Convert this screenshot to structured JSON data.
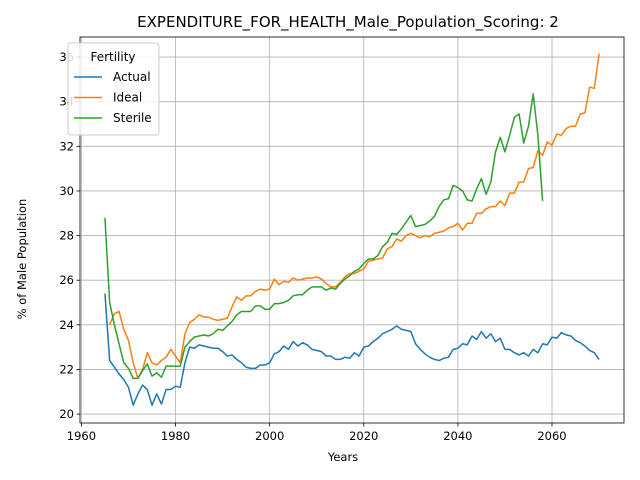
{
  "chart_data": {
    "type": "line",
    "title": "EXPENDITURE_FOR_HEALTH_Male_Population_Scoring: 2",
    "xlabel": "Years",
    "ylabel": "% of Male Population",
    "xlim": [
      1959.7,
      2075.3
    ],
    "ylim": [
      19.6,
      36.9
    ],
    "x_ticks": [
      1960,
      1980,
      2000,
      2020,
      2040,
      2060
    ],
    "y_ticks": [
      20,
      22,
      24,
      26,
      28,
      30,
      32,
      34,
      36
    ],
    "grid": true,
    "legend": {
      "title": "Fertility",
      "placement": "upper-left"
    },
    "series": [
      {
        "name": "Actual",
        "color": "#1f77b4",
        "points": [
          [
            1965,
            25.4
          ],
          [
            1966,
            22.4
          ],
          [
            1967,
            22.1
          ],
          [
            1968,
            21.8
          ],
          [
            1969,
            21.55
          ],
          [
            1970,
            21.2
          ],
          [
            1971,
            20.4
          ],
          [
            1972,
            20.9
          ],
          [
            1973,
            21.3
          ],
          [
            1974,
            21.1
          ],
          [
            1975,
            20.4
          ],
          [
            1976,
            20.9
          ],
          [
            1977,
            20.45
          ],
          [
            1978,
            21.1
          ],
          [
            1979,
            21.1
          ],
          [
            1980,
            21.25
          ],
          [
            1981,
            21.2
          ],
          [
            1982,
            22.3
          ],
          [
            1983,
            23.0
          ],
          [
            1984,
            22.95
          ],
          [
            1985,
            23.1
          ],
          [
            1986,
            23.05
          ],
          [
            1987,
            23.0
          ],
          [
            1988,
            22.95
          ],
          [
            1989,
            22.95
          ],
          [
            1990,
            22.8
          ],
          [
            1991,
            22.6
          ],
          [
            1992,
            22.65
          ],
          [
            1993,
            22.45
          ],
          [
            1994,
            22.3
          ],
          [
            1995,
            22.1
          ],
          [
            1996,
            22.05
          ],
          [
            1997,
            22.05
          ],
          [
            1998,
            22.2
          ],
          [
            1999,
            22.2
          ],
          [
            2000,
            22.3
          ],
          [
            2001,
            22.7
          ],
          [
            2002,
            22.8
          ],
          [
            2003,
            23.05
          ],
          [
            2004,
            22.9
          ],
          [
            2005,
            23.25
          ],
          [
            2006,
            23.05
          ],
          [
            2007,
            23.2
          ],
          [
            2008,
            23.1
          ],
          [
            2009,
            22.9
          ],
          [
            2010,
            22.85
          ],
          [
            2011,
            22.8
          ],
          [
            2012,
            22.6
          ],
          [
            2013,
            22.6
          ],
          [
            2014,
            22.45
          ],
          [
            2015,
            22.45
          ],
          [
            2016,
            22.55
          ],
          [
            2017,
            22.5
          ],
          [
            2018,
            22.75
          ],
          [
            2019,
            22.6
          ],
          [
            2020,
            23.0
          ],
          [
            2021,
            23.05
          ],
          [
            2022,
            23.25
          ],
          [
            2023,
            23.4
          ],
          [
            2024,
            23.6
          ],
          [
            2025,
            23.7
          ],
          [
            2026,
            23.8
          ],
          [
            2027,
            23.95
          ],
          [
            2028,
            23.8
          ],
          [
            2029,
            23.75
          ],
          [
            2030,
            23.7
          ],
          [
            2031,
            23.15
          ],
          [
            2032,
            22.9
          ],
          [
            2033,
            22.7
          ],
          [
            2034,
            22.55
          ],
          [
            2035,
            22.45
          ],
          [
            2036,
            22.4
          ],
          [
            2037,
            22.5
          ],
          [
            2038,
            22.55
          ],
          [
            2039,
            22.9
          ],
          [
            2040,
            22.95
          ],
          [
            2041,
            23.15
          ],
          [
            2042,
            23.1
          ],
          [
            2043,
            23.5
          ],
          [
            2044,
            23.35
          ],
          [
            2045,
            23.7
          ],
          [
            2046,
            23.4
          ],
          [
            2047,
            23.6
          ],
          [
            2048,
            23.25
          ],
          [
            2049,
            23.4
          ],
          [
            2050,
            22.9
          ],
          [
            2051,
            22.9
          ],
          [
            2052,
            22.75
          ],
          [
            2053,
            22.65
          ],
          [
            2054,
            22.75
          ],
          [
            2055,
            22.6
          ],
          [
            2056,
            22.9
          ],
          [
            2057,
            22.75
          ],
          [
            2058,
            23.15
          ],
          [
            2059,
            23.1
          ],
          [
            2060,
            23.45
          ],
          [
            2061,
            23.4
          ],
          [
            2062,
            23.65
          ],
          [
            2063,
            23.55
          ],
          [
            2064,
            23.5
          ],
          [
            2065,
            23.3
          ],
          [
            2066,
            23.2
          ],
          [
            2067,
            23.05
          ],
          [
            2068,
            22.85
          ],
          [
            2069,
            22.75
          ],
          [
            2070,
            22.45
          ]
        ]
      },
      {
        "name": "Ideal",
        "color": "#ff7f0e",
        "points": [
          [
            1966,
            24.0
          ],
          [
            1967,
            24.5
          ],
          [
            1968,
            24.6
          ],
          [
            1969,
            23.8
          ],
          [
            1970,
            23.3
          ],
          [
            1971,
            22.3
          ],
          [
            1972,
            21.6
          ],
          [
            1973,
            22.0
          ],
          [
            1974,
            22.75
          ],
          [
            1975,
            22.3
          ],
          [
            1976,
            22.2
          ],
          [
            1977,
            22.4
          ],
          [
            1978,
            22.55
          ],
          [
            1979,
            22.9
          ],
          [
            1980,
            22.6
          ],
          [
            1981,
            22.3
          ],
          [
            1982,
            23.6
          ],
          [
            1983,
            24.1
          ],
          [
            1984,
            24.25
          ],
          [
            1985,
            24.45
          ],
          [
            1986,
            24.35
          ],
          [
            1987,
            24.35
          ],
          [
            1988,
            24.25
          ],
          [
            1989,
            24.2
          ],
          [
            1990,
            24.25
          ],
          [
            1991,
            24.3
          ],
          [
            1992,
            24.8
          ],
          [
            1993,
            25.25
          ],
          [
            1994,
            25.1
          ],
          [
            1995,
            25.3
          ],
          [
            1996,
            25.3
          ],
          [
            1997,
            25.5
          ],
          [
            1998,
            25.6
          ],
          [
            1999,
            25.55
          ],
          [
            2000,
            25.6
          ],
          [
            2001,
            26.05
          ],
          [
            2002,
            25.8
          ],
          [
            2003,
            25.95
          ],
          [
            2004,
            25.9
          ],
          [
            2005,
            26.1
          ],
          [
            2006,
            26.0
          ],
          [
            2007,
            26.05
          ],
          [
            2008,
            26.1
          ],
          [
            2009,
            26.1
          ],
          [
            2010,
            26.15
          ],
          [
            2011,
            26.05
          ],
          [
            2012,
            25.85
          ],
          [
            2013,
            25.7
          ],
          [
            2014,
            25.7
          ],
          [
            2015,
            25.9
          ],
          [
            2016,
            26.15
          ],
          [
            2017,
            26.3
          ],
          [
            2018,
            26.3
          ],
          [
            2019,
            26.4
          ],
          [
            2020,
            26.5
          ],
          [
            2021,
            26.85
          ],
          [
            2022,
            26.9
          ],
          [
            2023,
            26.95
          ],
          [
            2024,
            27.0
          ],
          [
            2025,
            27.4
          ],
          [
            2026,
            27.5
          ],
          [
            2027,
            27.85
          ],
          [
            2028,
            27.75
          ],
          [
            2029,
            28.0
          ],
          [
            2030,
            28.1
          ],
          [
            2031,
            28.0
          ],
          [
            2032,
            27.9
          ],
          [
            2033,
            28.0
          ],
          [
            2034,
            27.95
          ],
          [
            2035,
            28.1
          ],
          [
            2036,
            28.15
          ],
          [
            2037,
            28.2
          ],
          [
            2038,
            28.35
          ],
          [
            2039,
            28.4
          ],
          [
            2040,
            28.55
          ],
          [
            2041,
            28.25
          ],
          [
            2042,
            28.55
          ],
          [
            2043,
            28.55
          ],
          [
            2044,
            29.0
          ],
          [
            2045,
            29.0
          ],
          [
            2046,
            29.2
          ],
          [
            2047,
            29.3
          ],
          [
            2048,
            29.3
          ],
          [
            2049,
            29.55
          ],
          [
            2050,
            29.35
          ],
          [
            2051,
            29.9
          ],
          [
            2052,
            29.9
          ],
          [
            2053,
            30.4
          ],
          [
            2054,
            30.4
          ],
          [
            2055,
            31.0
          ],
          [
            2056,
            31.05
          ],
          [
            2057,
            31.8
          ],
          [
            2058,
            31.6
          ],
          [
            2059,
            32.2
          ],
          [
            2060,
            32.05
          ],
          [
            2061,
            32.55
          ],
          [
            2062,
            32.5
          ],
          [
            2063,
            32.8
          ],
          [
            2064,
            32.9
          ],
          [
            2065,
            32.9
          ],
          [
            2066,
            33.45
          ],
          [
            2067,
            33.5
          ],
          [
            2068,
            34.65
          ],
          [
            2069,
            34.6
          ],
          [
            2070,
            36.15
          ]
        ]
      },
      {
        "name": "Sterile",
        "color": "#2ca02c",
        "points": [
          [
            1965,
            28.8
          ],
          [
            1966,
            25.0
          ],
          [
            1967,
            24.0
          ],
          [
            1968,
            23.15
          ],
          [
            1969,
            22.3
          ],
          [
            1970,
            22.05
          ],
          [
            1971,
            21.6
          ],
          [
            1972,
            21.6
          ],
          [
            1973,
            21.95
          ],
          [
            1974,
            22.25
          ],
          [
            1975,
            21.7
          ],
          [
            1976,
            21.85
          ],
          [
            1977,
            21.65
          ],
          [
            1978,
            22.15
          ],
          [
            1979,
            22.15
          ],
          [
            1980,
            22.15
          ],
          [
            1981,
            22.15
          ],
          [
            1982,
            23.0
          ],
          [
            1983,
            23.25
          ],
          [
            1984,
            23.45
          ],
          [
            1985,
            23.5
          ],
          [
            1986,
            23.55
          ],
          [
            1987,
            23.5
          ],
          [
            1988,
            23.6
          ],
          [
            1989,
            23.8
          ],
          [
            1990,
            23.75
          ],
          [
            1991,
            23.95
          ],
          [
            1992,
            24.15
          ],
          [
            1993,
            24.45
          ],
          [
            1994,
            24.6
          ],
          [
            1995,
            24.6
          ],
          [
            1996,
            24.6
          ],
          [
            1997,
            24.85
          ],
          [
            1998,
            24.85
          ],
          [
            1999,
            24.7
          ],
          [
            2000,
            24.7
          ],
          [
            2001,
            24.95
          ],
          [
            2002,
            24.95
          ],
          [
            2003,
            25.0
          ],
          [
            2004,
            25.1
          ],
          [
            2005,
            25.3
          ],
          [
            2006,
            25.35
          ],
          [
            2007,
            25.35
          ],
          [
            2008,
            25.55
          ],
          [
            2009,
            25.7
          ],
          [
            2010,
            25.7
          ],
          [
            2011,
            25.7
          ],
          [
            2012,
            25.55
          ],
          [
            2013,
            25.65
          ],
          [
            2014,
            25.6
          ],
          [
            2015,
            25.85
          ],
          [
            2016,
            26.05
          ],
          [
            2017,
            26.2
          ],
          [
            2018,
            26.4
          ],
          [
            2019,
            26.5
          ],
          [
            2020,
            26.75
          ],
          [
            2021,
            26.95
          ],
          [
            2022,
            26.95
          ],
          [
            2023,
            27.1
          ],
          [
            2024,
            27.5
          ],
          [
            2025,
            27.7
          ],
          [
            2026,
            28.1
          ],
          [
            2027,
            28.05
          ],
          [
            2028,
            28.3
          ],
          [
            2029,
            28.6
          ],
          [
            2030,
            28.9
          ],
          [
            2031,
            28.4
          ],
          [
            2032,
            28.45
          ],
          [
            2033,
            28.5
          ],
          [
            2034,
            28.65
          ],
          [
            2035,
            28.85
          ],
          [
            2036,
            29.3
          ],
          [
            2037,
            29.6
          ],
          [
            2038,
            29.65
          ],
          [
            2039,
            30.25
          ],
          [
            2040,
            30.15
          ],
          [
            2041,
            30.0
          ],
          [
            2042,
            29.6
          ],
          [
            2043,
            29.55
          ],
          [
            2044,
            30.1
          ],
          [
            2045,
            30.55
          ],
          [
            2046,
            29.85
          ],
          [
            2047,
            30.4
          ],
          [
            2048,
            31.75
          ],
          [
            2049,
            32.4
          ],
          [
            2050,
            31.75
          ],
          [
            2051,
            32.5
          ],
          [
            2052,
            33.3
          ],
          [
            2053,
            33.45
          ],
          [
            2054,
            32.15
          ],
          [
            2055,
            32.9
          ],
          [
            2056,
            34.35
          ],
          [
            2057,
            32.5
          ],
          [
            2058,
            29.55
          ]
        ]
      }
    ]
  }
}
